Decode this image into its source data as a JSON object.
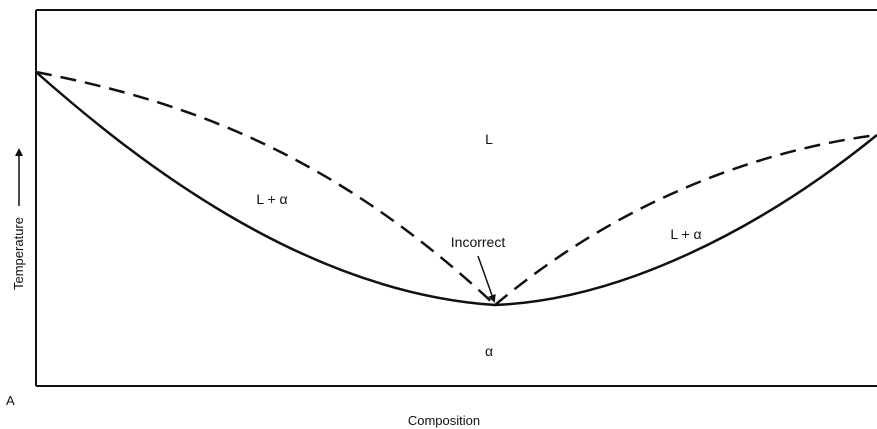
{
  "diagram": {
    "axes": {
      "y_label": "Temperature",
      "x_label": "Composition",
      "x_start_label": "A"
    },
    "regions": {
      "liquid": "L",
      "liquid_alpha_left": "L + α",
      "liquid_alpha_right": "L + α",
      "alpha": "α"
    },
    "annotation": "Incorrect",
    "colors": {
      "line": "#111111",
      "background": "#ffffff"
    }
  }
}
